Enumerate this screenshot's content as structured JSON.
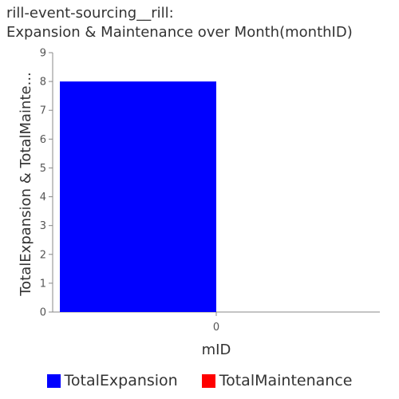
{
  "chart_data": {
    "type": "bar",
    "title_lines": [
      "rill-event-sourcing__rill:",
      "Expansion & Maintenance over Month(monthID)"
    ],
    "xlabel": "mID",
    "ylabel": "TotalExpansion & TotalMainte...",
    "categories": [
      "0"
    ],
    "ylim": [
      0,
      9
    ],
    "yticks": [
      "0",
      "1",
      "2",
      "3",
      "4",
      "5",
      "6",
      "7",
      "8",
      "9"
    ],
    "grid": false,
    "legend_position": "bottom",
    "series": [
      {
        "name": "TotalExpansion",
        "color": "#0000ff",
        "values": [
          8
        ]
      },
      {
        "name": "TotalMaintenance",
        "color": "#ff0000",
        "values": [
          0
        ]
      }
    ]
  }
}
